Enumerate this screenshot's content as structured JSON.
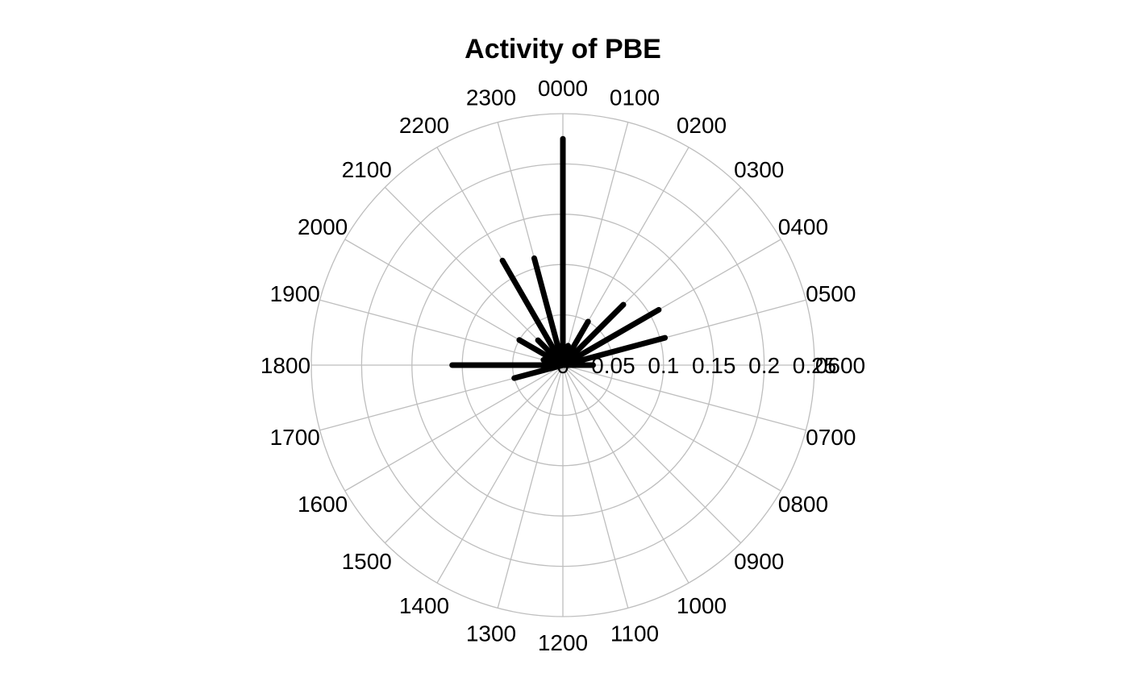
{
  "chart_data": {
    "type": "polar-rose",
    "title": "Activity of PBE",
    "angle_labels": [
      "0000",
      "0100",
      "0200",
      "0300",
      "0400",
      "0500",
      "0600",
      "0700",
      "0800",
      "0900",
      "1000",
      "1100",
      "1200",
      "1300",
      "1400",
      "1500",
      "1600",
      "1700",
      "1800",
      "1900",
      "2000",
      "2100",
      "2200",
      "2300"
    ],
    "radial_ticks": [
      0,
      0.05,
      0.1,
      0.15,
      0.2,
      0.25
    ],
    "radial_tick_labels": [
      "0",
      "0.05",
      "0.1",
      "0.15",
      "0.2",
      "0.25"
    ],
    "rmax": 0.25,
    "grid": true,
    "grid_color": "#bebebe",
    "series": [
      {
        "color": "#000000",
        "hours": [
          0,
          1,
          2,
          3,
          4,
          5,
          6,
          17,
          18,
          19,
          20,
          21,
          22,
          23
        ],
        "values": [
          0.225,
          0.02,
          0.05,
          0.085,
          0.11,
          0.105,
          0.03,
          0.05,
          0.11,
          0.02,
          0.05,
          0.035,
          0.12,
          0.11
        ]
      }
    ]
  }
}
